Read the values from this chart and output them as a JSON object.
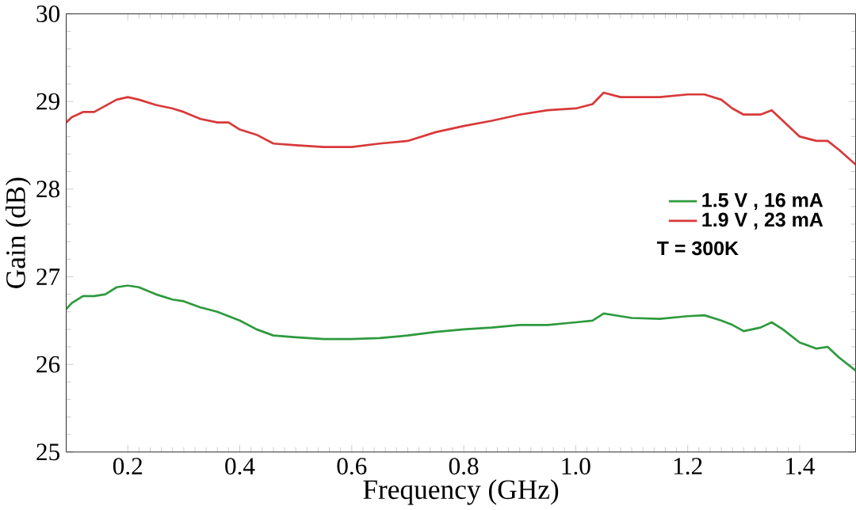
{
  "chart_data": {
    "type": "line",
    "xlabel": "Frequency (GHz)",
    "ylabel": "Gain (dB)",
    "xlim": [
      0.09,
      1.5
    ],
    "ylim": [
      25,
      30
    ],
    "xticks": [
      0.2,
      0.4,
      0.6,
      0.8,
      {
        "value": 1.0,
        "label": "1.0"
      },
      1.2,
      1.4
    ],
    "yticks": [
      25,
      26,
      27,
      28,
      29,
      30
    ],
    "legend": "right",
    "grid": false,
    "marker": "none",
    "line_style": "solid",
    "annotations": [
      "T = 300K"
    ],
    "series": [
      {
        "name": "1.5 V , 16 mA",
        "color": "#2e9a3e",
        "x": [
          0.09,
          0.1,
          0.12,
          0.14,
          0.16,
          0.18,
          0.2,
          0.22,
          0.25,
          0.28,
          0.3,
          0.33,
          0.36,
          0.38,
          0.4,
          0.43,
          0.46,
          0.5,
          0.55,
          0.6,
          0.65,
          0.7,
          0.75,
          0.8,
          0.85,
          0.9,
          0.95,
          1.0,
          1.03,
          1.05,
          1.08,
          1.1,
          1.15,
          1.2,
          1.23,
          1.26,
          1.28,
          1.3,
          1.33,
          1.35,
          1.37,
          1.4,
          1.43,
          1.45,
          1.47,
          1.5
        ],
        "values": [
          26.63,
          26.7,
          26.78,
          26.78,
          26.8,
          26.88,
          26.9,
          26.88,
          26.8,
          26.74,
          26.72,
          26.65,
          26.6,
          26.55,
          26.5,
          26.4,
          26.33,
          26.31,
          26.29,
          26.29,
          26.3,
          26.33,
          26.37,
          26.4,
          26.42,
          26.45,
          26.45,
          26.48,
          26.5,
          26.58,
          26.55,
          26.53,
          26.52,
          26.55,
          26.56,
          26.5,
          26.45,
          26.38,
          26.42,
          26.48,
          26.4,
          26.25,
          26.18,
          26.2,
          26.08,
          25.93
        ]
      },
      {
        "name": "1.9 V , 23 mA",
        "color": "#d8393a",
        "x": [
          0.09,
          0.1,
          0.12,
          0.14,
          0.16,
          0.18,
          0.2,
          0.22,
          0.25,
          0.28,
          0.3,
          0.33,
          0.36,
          0.38,
          0.4,
          0.43,
          0.46,
          0.5,
          0.55,
          0.6,
          0.65,
          0.7,
          0.75,
          0.8,
          0.85,
          0.9,
          0.95,
          1.0,
          1.03,
          1.05,
          1.08,
          1.1,
          1.15,
          1.2,
          1.23,
          1.26,
          1.28,
          1.3,
          1.33,
          1.35,
          1.37,
          1.4,
          1.43,
          1.45,
          1.47,
          1.5
        ],
        "values": [
          28.76,
          28.82,
          28.88,
          28.88,
          28.95,
          29.02,
          29.05,
          29.02,
          28.96,
          28.92,
          28.88,
          28.8,
          28.76,
          28.76,
          28.68,
          28.62,
          28.52,
          28.5,
          28.48,
          28.48,
          28.52,
          28.55,
          28.65,
          28.72,
          28.78,
          28.85,
          28.9,
          28.92,
          28.97,
          29.1,
          29.05,
          29.05,
          29.05,
          29.08,
          29.08,
          29.02,
          28.92,
          28.85,
          28.85,
          28.9,
          28.78,
          28.6,
          28.55,
          28.55,
          28.45,
          28.28
        ]
      }
    ]
  }
}
